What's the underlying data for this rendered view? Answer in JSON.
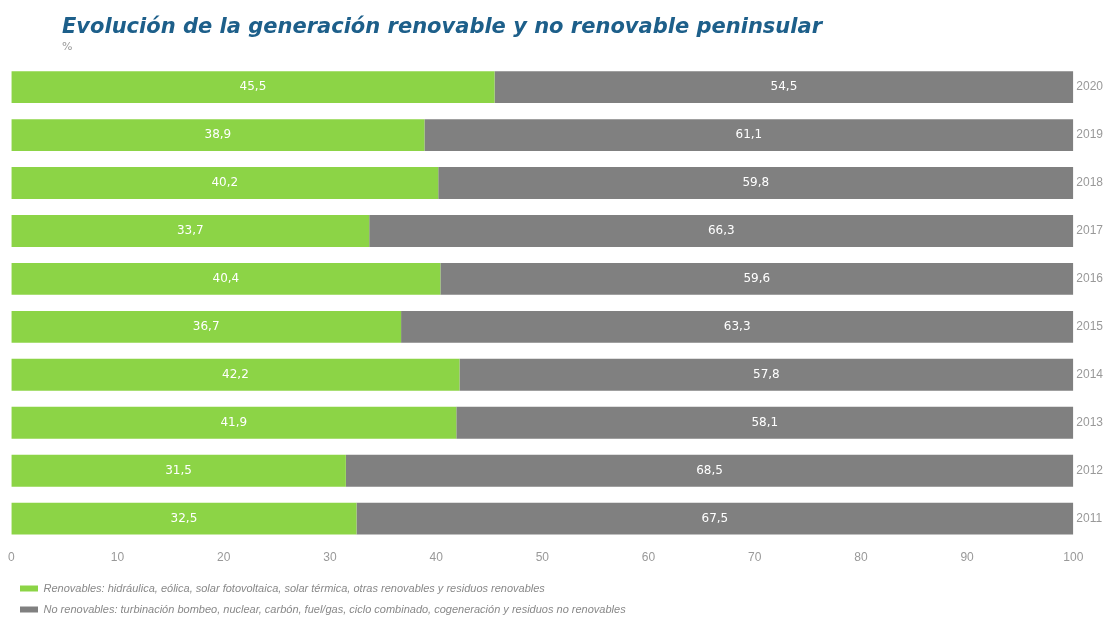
{
  "chart_data": {
    "type": "bar",
    "orientation": "horizontal",
    "stacked": true,
    "title": "Evolución de la generación renovable y no renovable peninsular",
    "subtitle": "%",
    "categories": [
      "2020",
      "2019",
      "2018",
      "2017",
      "2016",
      "2015",
      "2014",
      "2013",
      "2012",
      "2011"
    ],
    "series": [
      {
        "name": "Renovables: hidráulica, eólica, solar fotovoltaica, solar térmica, otras renovables y residuos renovables",
        "color": "#8cd446",
        "values": [
          45.5,
          38.9,
          40.2,
          33.7,
          40.4,
          36.7,
          42.2,
          41.9,
          31.5,
          32.5
        ],
        "value_labels": [
          "45,5",
          "38,9",
          "40,2",
          "33,7",
          "40,4",
          "36,7",
          "42,2",
          "41,9",
          "31,5",
          "32,5"
        ]
      },
      {
        "name": "No renovables: turbinación bombeo, nuclear, carbón, fuel/gas, ciclo combinado, cogeneración y residuos no renovables",
        "color": "#808080",
        "values": [
          54.5,
          61.1,
          59.8,
          66.3,
          59.6,
          63.3,
          57.8,
          58.1,
          68.5,
          67.5
        ],
        "value_labels": [
          "54,5",
          "61,1",
          "59,8",
          "66,3",
          "59,6",
          "63,3",
          "57,8",
          "58,1",
          "68,5",
          "67,5"
        ]
      }
    ],
    "xlim": [
      0,
      100
    ],
    "xticks": [
      0,
      10,
      20,
      30,
      40,
      50,
      60,
      70,
      80,
      90,
      100
    ],
    "grid": false,
    "legend": "bottom"
  }
}
